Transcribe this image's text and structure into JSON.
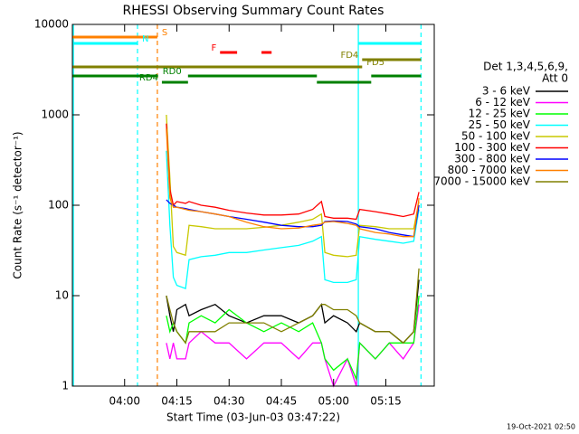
{
  "chart_data": {
    "type": "line",
    "title": "RHESSI Observing Summary Count Rates",
    "x_label": "Start Time (03-Jun-03 03:47:22)",
    "y_label": "Count Rate (s⁻¹ detector⁻¹)",
    "legend_title": [
      "Det 1,3,4,5,6,9,",
      "Att 0"
    ],
    "timestamp": "19-Oct-2021 02:50",
    "log_y": true,
    "xlim": [
      225,
      328.9
    ],
    "ylim": [
      1,
      10000
    ],
    "yticks": [
      1,
      10,
      100,
      1000,
      10000
    ],
    "xticks": [
      {
        "value": 240,
        "label": "04:00"
      },
      {
        "value": 255,
        "label": "04:15"
      },
      {
        "value": 270,
        "label": "04:30"
      },
      {
        "value": 285,
        "label": "04:45"
      },
      {
        "value": 300,
        "label": "05:00"
      },
      {
        "value": 315,
        "label": "05:15"
      }
    ],
    "x": [
      252,
      253,
      254,
      255,
      257.5,
      258.5,
      262,
      266,
      270,
      275,
      280,
      285,
      290,
      294,
      296.5,
      297.5,
      300,
      304,
      306.5,
      307.5,
      312,
      316,
      320,
      323,
      324.5
    ],
    "series": [
      {
        "name": "3 - 6 keV",
        "color": "#000000",
        "values": [
          10,
          6,
          4,
          7,
          8,
          6,
          7,
          8,
          6,
          5,
          6,
          6,
          5,
          6,
          8,
          5,
          6,
          5,
          4,
          5,
          4,
          4,
          3,
          4,
          15
        ]
      },
      {
        "name": "6 - 12 keV",
        "color": "#ff00ff",
        "values": [
          3,
          2,
          3,
          2,
          2,
          3,
          4,
          3,
          3,
          2,
          3,
          3,
          2,
          3,
          3,
          2,
          1,
          2,
          1,
          3,
          2,
          3,
          2,
          3,
          8
        ]
      },
      {
        "name": "12 - 25 keV",
        "color": "#00ff00",
        "values": [
          6,
          4,
          5,
          4,
          3,
          5,
          6,
          5,
          7,
          5,
          4,
          5,
          4,
          5,
          3,
          2,
          1.5,
          2,
          1.2,
          3,
          2,
          3,
          3,
          3,
          10
        ]
      },
      {
        "name": "25 - 50 keV",
        "color": "#00ffff",
        "values": [
          400,
          60,
          16,
          13,
          12,
          25,
          27,
          28,
          30,
          30,
          32,
          34,
          36,
          40,
          45,
          15,
          14,
          14,
          15,
          45,
          42,
          40,
          38,
          40,
          90
        ]
      },
      {
        "name": "50 - 100 keV",
        "color": "#c8c800",
        "values": [
          1000,
          200,
          35,
          30,
          28,
          60,
          58,
          55,
          55,
          55,
          57,
          60,
          65,
          70,
          80,
          30,
          28,
          27,
          28,
          60,
          58,
          55,
          55,
          55,
          110
        ]
      },
      {
        "name": "100 - 300 keV",
        "color": "#ff0000",
        "values": [
          800,
          150,
          100,
          110,
          105,
          110,
          100,
          95,
          88,
          82,
          78,
          78,
          80,
          90,
          110,
          75,
          72,
          72,
          70,
          90,
          85,
          80,
          75,
          80,
          140
        ]
      },
      {
        "name": "300 - 800 keV",
        "color": "#0000ff",
        "values": [
          115,
          105,
          100,
          95,
          92,
          90,
          85,
          80,
          75,
          70,
          65,
          60,
          58,
          58,
          60,
          66,
          67,
          66,
          62,
          58,
          55,
          50,
          47,
          45,
          100
        ]
      },
      {
        "name": "800 - 7000 keV",
        "color": "#ff8000",
        "values": [
          700,
          120,
          95,
          95,
          90,
          88,
          85,
          80,
          75,
          65,
          58,
          55,
          56,
          60,
          62,
          65,
          66,
          63,
          60,
          55,
          50,
          48,
          45,
          45,
          120
        ]
      },
      {
        "name": "7000 - 15000 keV",
        "color": "#808000",
        "values": [
          10,
          7,
          5,
          4,
          3,
          4,
          4,
          4,
          5,
          5,
          5,
          4,
          5,
          6,
          8,
          8,
          7,
          7,
          6,
          5,
          4,
          4,
          3,
          4,
          20
        ]
      }
    ],
    "flags": [
      {
        "label": "S",
        "color": "#ff8000",
        "side": "right",
        "segments": [
          [
            225,
            249.4
          ]
        ]
      },
      {
        "label": "N",
        "color": "#00ffff",
        "side": "right",
        "segments": [
          [
            225,
            243.7
          ],
          [
            307.1,
            325.1
          ]
        ]
      },
      {
        "label": "F",
        "color": "#ff0000",
        "side": "left",
        "segments": [
          [
            267.4,
            272.3
          ],
          [
            279.3,
            282.2
          ]
        ]
      },
      {
        "label": "FD4",
        "color": "#808000",
        "side": "left",
        "segments": [
          [
            308.2,
            325.1
          ]
        ]
      },
      {
        "label": "FD5",
        "color": "#808000",
        "side": "right",
        "segments": [
          [
            225,
            308.2
          ]
        ]
      },
      {
        "label": "RD0",
        "color": "#008000",
        "side": "right",
        "segments": [
          [
            225,
            249.6
          ],
          [
            258.2,
            295.2
          ],
          [
            310.8,
            325.1
          ]
        ]
      },
      {
        "label": "RD4",
        "color": "#008000",
        "side": "left",
        "segments": [
          [
            250.7,
            258.2
          ],
          [
            295.2,
            310.8
          ]
        ]
      }
    ],
    "markers": [
      {
        "x": 225.3,
        "color": "#00ffff",
        "dashed": false
      },
      {
        "x": 243.7,
        "color": "#00ffff",
        "dashed": true
      },
      {
        "x": 249.4,
        "color": "#ff8000",
        "dashed": true
      },
      {
        "x": 307.1,
        "color": "#00ffff",
        "dashed": false
      },
      {
        "x": 325.1,
        "color": "#00ffff",
        "dashed": true
      }
    ]
  }
}
